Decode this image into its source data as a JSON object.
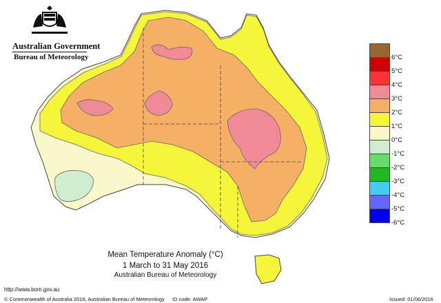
{
  "header": {
    "org": "Australian Government",
    "bureau": "Bureau of Meteorology"
  },
  "caption": {
    "title": "Mean Temperature Anomaly (°C)",
    "dates": "1 March to 31 May 2016",
    "org": "Australian Bureau of Meteorology"
  },
  "legend": {
    "items": [
      {
        "label": "6°C",
        "color": "#996633"
      },
      {
        "label": "5°C",
        "color": "#cc0000"
      },
      {
        "label": "4°C",
        "color": "#ff3333"
      },
      {
        "label": "3°C",
        "color": "#f08a96"
      },
      {
        "label": "2°C",
        "color": "#f5b065"
      },
      {
        "label": "1°C",
        "color": "#f5f53a"
      },
      {
        "label": "0°C",
        "color": "#f8f8c8"
      },
      {
        "label": "-1°C",
        "color": "#cfeecf"
      },
      {
        "label": "-2°C",
        "color": "#66dd66"
      },
      {
        "label": "-3°C",
        "color": "#22b822"
      },
      {
        "label": "-4°C",
        "color": "#44ccf0"
      },
      {
        "label": "-5°C",
        "color": "#6666ff"
      },
      {
        "label": "-6°C",
        "color": "#0000ee"
      }
    ]
  },
  "footer": {
    "url": "http://www.bom.gov.au",
    "copyright": "© Commonwealth of Australia 2016, Australian Bureau of Meteorology",
    "id_code": "ID code: AWAP",
    "issued": "Issued: 01/06/2016"
  }
}
